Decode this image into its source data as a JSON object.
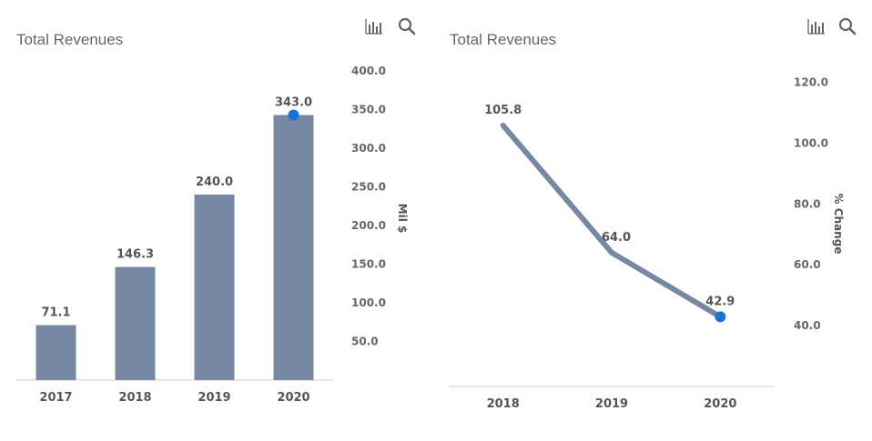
{
  "colors": {
    "bar": "#7788a3",
    "line": "#7788a3",
    "highlight": "#1a73d9",
    "icon": "#666666"
  },
  "icons": {
    "chart_toggle": "bar-chart-icon",
    "search": "search-icon"
  },
  "chart_data": [
    {
      "type": "bar",
      "title": "Total Revenues",
      "categories": [
        "2017",
        "2018",
        "2019",
        "2020"
      ],
      "values": [
        71.1,
        146.3,
        240.0,
        343.0
      ],
      "value_labels": [
        "71.1",
        "146.3",
        "240.0",
        "343.0"
      ],
      "ylabel": "Mil $",
      "ylim": [
        0,
        400
      ],
      "yticks": [
        50,
        100,
        150,
        200,
        250,
        300,
        350,
        400
      ],
      "ytick_labels": [
        "50.0",
        "100.0",
        "150.0",
        "200.0",
        "250.0",
        "300.0",
        "350.0",
        "400.0"
      ],
      "highlight_index": 3,
      "axis_position": "right"
    },
    {
      "type": "line",
      "title": "Total Revenues",
      "categories": [
        "2018",
        "2019",
        "2020"
      ],
      "values": [
        105.8,
        64.0,
        42.9
      ],
      "value_labels": [
        "105.8",
        "64.0",
        "42.9"
      ],
      "ylabel": "% Change",
      "ylim": [
        20,
        130
      ],
      "yticks": [
        40,
        60,
        80,
        100,
        120
      ],
      "ytick_labels": [
        "40.0",
        "60.0",
        "80.0",
        "100.0",
        "120.0"
      ],
      "highlight_index": 2,
      "axis_position": "right"
    }
  ]
}
